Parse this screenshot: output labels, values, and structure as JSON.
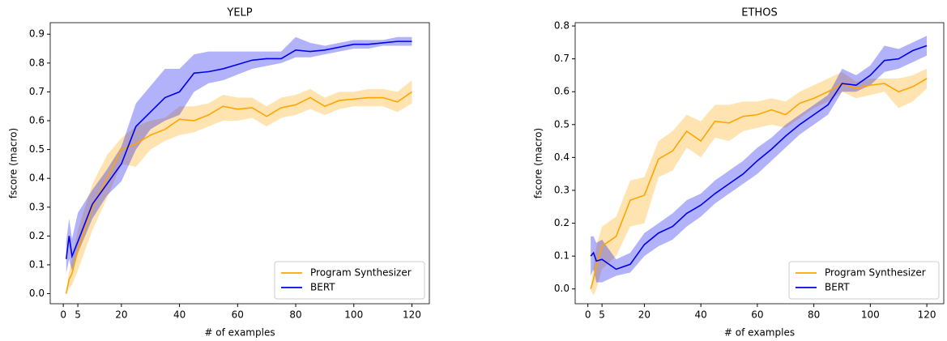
{
  "chart_data": [
    {
      "type": "line",
      "title": "YELP",
      "x_label": "# of examples",
      "y_label": "fscore (macro)",
      "x": [
        1,
        2,
        3,
        5,
        10,
        15,
        20,
        25,
        30,
        35,
        40,
        45,
        50,
        55,
        60,
        65,
        70,
        75,
        80,
        85,
        90,
        95,
        100,
        105,
        110,
        115,
        120
      ],
      "xlim": [
        -4.5,
        126
      ],
      "ylim": [
        -0.035,
        0.94
      ],
      "xticks": [
        0,
        5,
        20,
        40,
        60,
        80,
        100,
        120
      ],
      "yticks": [
        {
          "value": 0,
          "label": "0.0"
        },
        0.1,
        0.2,
        0.3,
        0.4,
        0.5,
        0.6,
        0.7,
        0.8,
        0.9
      ],
      "legend": "lower right",
      "grid": false,
      "series": [
        {
          "name": "Program Synthesizer",
          "color": "#ffa500",
          "values": [
            0.0,
            0.05,
            0.07,
            0.15,
            0.3,
            0.4,
            0.5,
            0.52,
            0.55,
            0.57,
            0.605,
            0.6,
            0.62,
            0.65,
            0.64,
            0.645,
            0.615,
            0.645,
            0.655,
            0.68,
            0.65,
            0.67,
            0.675,
            0.68,
            0.68,
            0.665,
            0.7
          ],
          "lower": [
            0.0,
            0.02,
            0.03,
            0.08,
            0.22,
            0.33,
            0.45,
            0.44,
            0.5,
            0.53,
            0.55,
            0.56,
            0.58,
            0.6,
            0.6,
            0.61,
            0.58,
            0.61,
            0.62,
            0.64,
            0.62,
            0.64,
            0.65,
            0.65,
            0.65,
            0.63,
            0.66
          ],
          "upper": [
            0.0,
            0.08,
            0.12,
            0.22,
            0.38,
            0.48,
            0.54,
            0.58,
            0.6,
            0.61,
            0.65,
            0.65,
            0.66,
            0.69,
            0.68,
            0.68,
            0.65,
            0.68,
            0.69,
            0.71,
            0.68,
            0.7,
            0.7,
            0.71,
            0.71,
            0.7,
            0.74
          ]
        },
        {
          "name": "BERT",
          "color": "#0000ee",
          "values": [
            0.12,
            0.2,
            0.13,
            0.18,
            0.31,
            0.38,
            0.45,
            0.58,
            0.63,
            0.68,
            0.7,
            0.765,
            0.77,
            0.78,
            0.795,
            0.81,
            0.815,
            0.815,
            0.845,
            0.84,
            0.845,
            0.855,
            0.865,
            0.865,
            0.87,
            0.875,
            0.875
          ],
          "lower": [
            0.07,
            0.12,
            0.08,
            0.14,
            0.26,
            0.34,
            0.39,
            0.5,
            0.57,
            0.6,
            0.62,
            0.7,
            0.73,
            0.74,
            0.76,
            0.78,
            0.79,
            0.8,
            0.82,
            0.82,
            0.83,
            0.84,
            0.85,
            0.85,
            0.86,
            0.86,
            0.86
          ],
          "upper": [
            0.18,
            0.26,
            0.19,
            0.28,
            0.36,
            0.43,
            0.51,
            0.66,
            0.72,
            0.78,
            0.78,
            0.83,
            0.84,
            0.84,
            0.84,
            0.84,
            0.84,
            0.84,
            0.89,
            0.87,
            0.86,
            0.87,
            0.88,
            0.88,
            0.88,
            0.89,
            0.89
          ]
        }
      ]
    },
    {
      "type": "line",
      "title": "ETHOS",
      "x_label": "# of examples",
      "y_label": "fscore (macro)",
      "x": [
        1,
        2,
        3,
        5,
        10,
        15,
        20,
        25,
        30,
        35,
        40,
        45,
        50,
        55,
        60,
        65,
        70,
        75,
        80,
        85,
        90,
        95,
        100,
        105,
        110,
        115,
        120
      ],
      "xlim": [
        -4.5,
        126
      ],
      "ylim": [
        -0.045,
        0.81
      ],
      "xticks": [
        0,
        5,
        20,
        40,
        60,
        80,
        100,
        120
      ],
      "yticks": [
        {
          "value": 0,
          "label": "0.0"
        },
        0.1,
        0.2,
        0.3,
        0.4,
        0.5,
        0.6,
        0.7,
        0.8
      ],
      "legend": "lower right",
      "grid": false,
      "series": [
        {
          "name": "Program Synthesizer",
          "color": "#ffa500",
          "values": [
            0.0,
            0.03,
            0.07,
            0.13,
            0.16,
            0.27,
            0.285,
            0.395,
            0.42,
            0.48,
            0.45,
            0.51,
            0.505,
            0.525,
            0.53,
            0.545,
            0.53,
            0.565,
            0.58,
            0.6,
            0.625,
            0.61,
            0.62,
            0.625,
            0.6,
            0.615,
            0.64
          ],
          "lower": [
            0.0,
            -0.02,
            0.0,
            0.06,
            0.1,
            0.19,
            0.2,
            0.34,
            0.36,
            0.43,
            0.4,
            0.46,
            0.45,
            0.48,
            0.49,
            0.5,
            0.49,
            0.52,
            0.55,
            0.57,
            0.6,
            0.58,
            0.59,
            0.6,
            0.55,
            0.57,
            0.61
          ],
          "upper": [
            0.0,
            0.07,
            0.13,
            0.19,
            0.22,
            0.33,
            0.34,
            0.45,
            0.48,
            0.53,
            0.51,
            0.56,
            0.56,
            0.57,
            0.57,
            0.58,
            0.57,
            0.6,
            0.62,
            0.64,
            0.66,
            0.63,
            0.64,
            0.64,
            0.64,
            0.65,
            0.67
          ]
        },
        {
          "name": "BERT",
          "color": "#0000ee",
          "values": [
            0.1,
            0.11,
            0.085,
            0.09,
            0.06,
            0.075,
            0.135,
            0.17,
            0.19,
            0.23,
            0.255,
            0.29,
            0.32,
            0.35,
            0.39,
            0.425,
            0.465,
            0.5,
            0.53,
            0.56,
            0.625,
            0.62,
            0.65,
            0.695,
            0.7,
            0.725,
            0.74
          ],
          "lower": [
            0.04,
            0.06,
            0.02,
            0.02,
            0.04,
            0.05,
            0.1,
            0.13,
            0.15,
            0.19,
            0.22,
            0.26,
            0.29,
            0.32,
            0.35,
            0.39,
            0.43,
            0.47,
            0.5,
            0.53,
            0.6,
            0.6,
            0.62,
            0.66,
            0.67,
            0.69,
            0.71
          ],
          "upper": [
            0.16,
            0.16,
            0.14,
            0.15,
            0.09,
            0.11,
            0.17,
            0.2,
            0.23,
            0.27,
            0.29,
            0.33,
            0.36,
            0.39,
            0.43,
            0.46,
            0.5,
            0.53,
            0.56,
            0.59,
            0.67,
            0.65,
            0.68,
            0.74,
            0.73,
            0.75,
            0.77
          ]
        }
      ]
    }
  ]
}
